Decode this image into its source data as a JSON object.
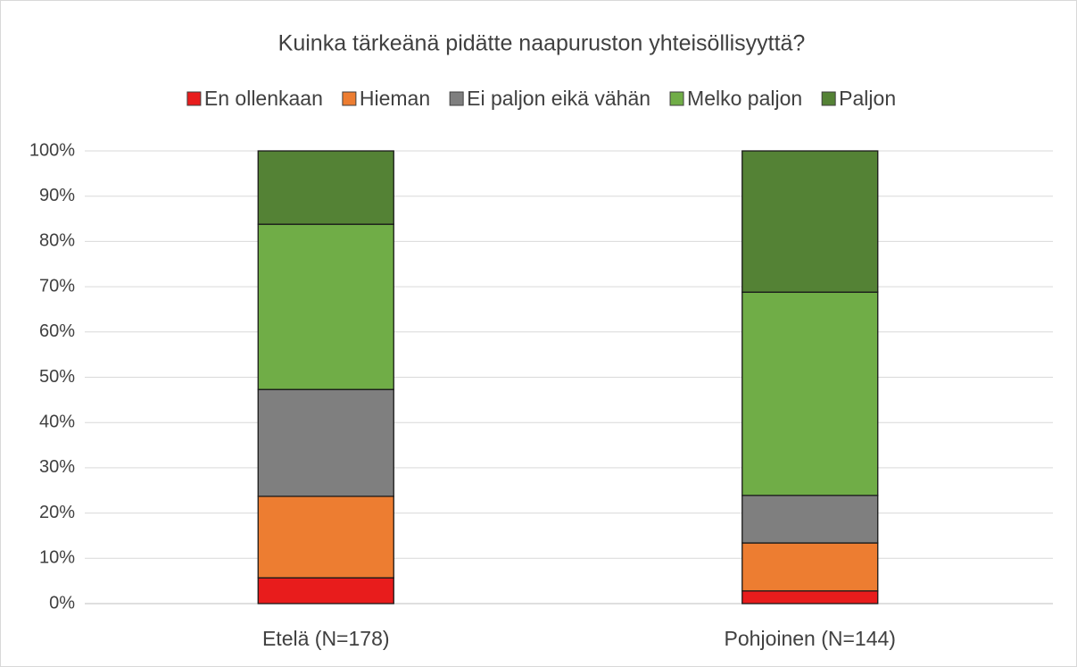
{
  "chart_data": {
    "type": "stacked_bar",
    "title": "Kuinka tärkeänä pidätte naapuruston yhteisöllisyyttä?",
    "categories": [
      "Etelä (N=178)",
      "Pohjoinen (N=144)"
    ],
    "series": [
      {
        "name": "En ollenkaan",
        "color": "#e81c1c",
        "values": [
          5.7,
          2.8
        ]
      },
      {
        "name": "Hieman",
        "color": "#ed7d31",
        "values": [
          18.0,
          10.6
        ]
      },
      {
        "name": "Ei paljon eikä vähän",
        "color": "#7f7f7f",
        "values": [
          23.6,
          10.5
        ]
      },
      {
        "name": "Melko paljon",
        "color": "#70ad47",
        "values": [
          36.5,
          44.9
        ]
      },
      {
        "name": "Paljon",
        "color": "#548235",
        "values": [
          16.2,
          31.2
        ]
      }
    ],
    "ylim": [
      0,
      100
    ],
    "yticks": [
      {
        "value": 0,
        "label": "0%"
      },
      {
        "value": 10,
        "label": "10%"
      },
      {
        "value": 20,
        "label": "20%"
      },
      {
        "value": 30,
        "label": "30%"
      },
      {
        "value": 40,
        "label": "40%"
      },
      {
        "value": 50,
        "label": "50%"
      },
      {
        "value": 60,
        "label": "60%"
      },
      {
        "value": 70,
        "label": "70%"
      },
      {
        "value": 80,
        "label": "80%"
      },
      {
        "value": 90,
        "label": "90%"
      },
      {
        "value": 100,
        "label": "100%"
      }
    ],
    "grid": true,
    "legend": "top"
  }
}
